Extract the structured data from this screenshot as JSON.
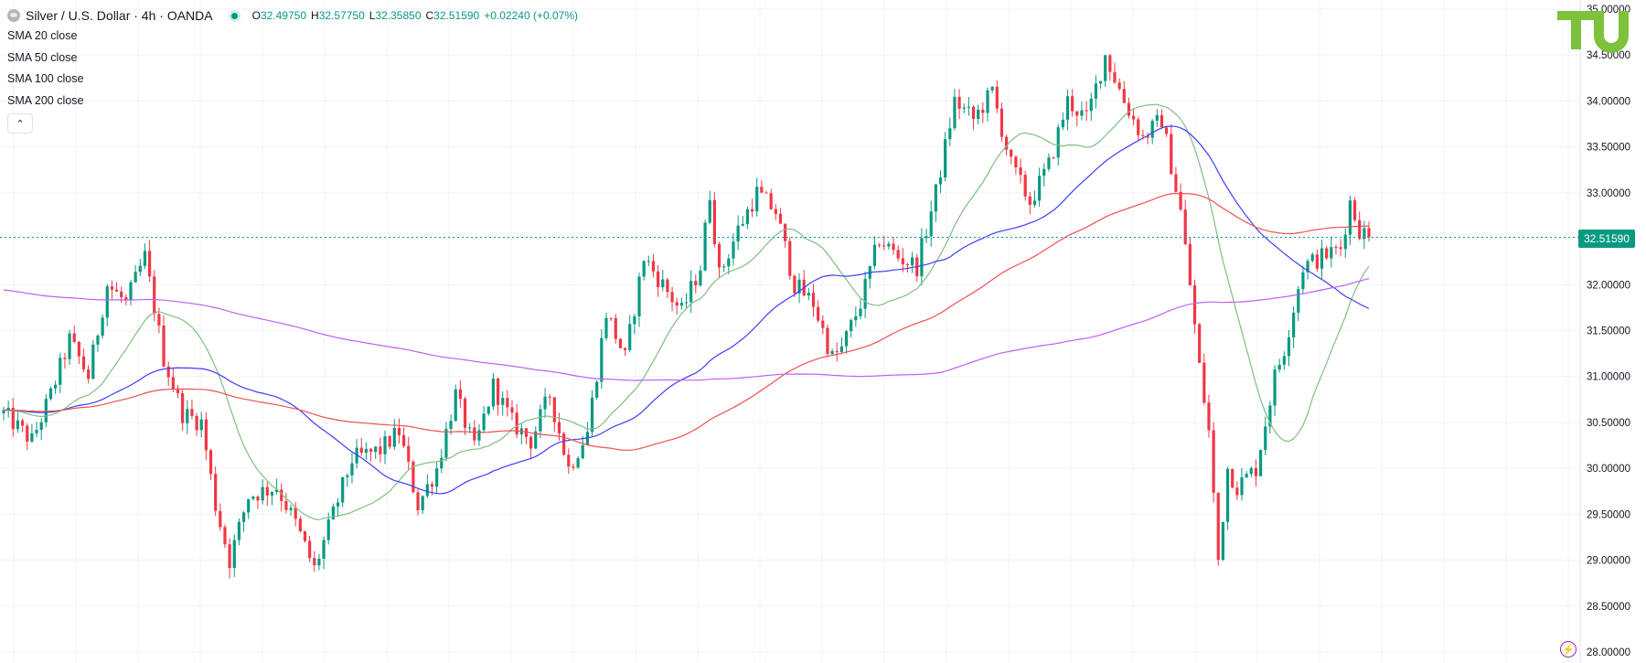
{
  "header": {
    "title": "Silver / U.S. Dollar · 4h · OANDA",
    "open_label": "O",
    "open": "32.49750",
    "high_label": "H",
    "high": "32.57750",
    "low_label": "L",
    "low": "32.35850",
    "close_label": "C",
    "close": "32.51590",
    "change": "+0.02240 (+0.07%)"
  },
  "indicators": [
    {
      "name": "SMA",
      "params": "20 close"
    },
    {
      "name": "SMA",
      "params": "50 close"
    },
    {
      "name": "SMA",
      "params": "100 close"
    },
    {
      "name": "SMA",
      "params": "200 close"
    }
  ],
  "last_price_label": "32.51590",
  "colors": {
    "up": "#089981",
    "down": "#f23645",
    "sma20": "#7fbf7f",
    "sma50": "#3d3dff",
    "sma100": "#f05050",
    "sma200": "#c060f0",
    "grid": "#f0f3fa",
    "axis_text": "#131722",
    "logo": "#7ec13d"
  },
  "chart_data": {
    "type": "candlestick",
    "symbol": "XAGUSD",
    "timeframe": "4h",
    "source": "OANDA",
    "ylim": [
      28.0,
      35.0
    ],
    "y_ticks": [
      "35.00000",
      "34.50000",
      "34.00000",
      "33.50000",
      "33.00000",
      "32.50000",
      "32.00000",
      "31.50000",
      "31.00000",
      "30.50000",
      "30.00000",
      "29.50000",
      "29.00000",
      "28.50000",
      "28.00000"
    ],
    "price_path": [
      [
        0,
        30.6
      ],
      [
        6,
        30.3
      ],
      [
        10,
        30.8
      ],
      [
        14,
        31.4
      ],
      [
        18,
        31.0
      ],
      [
        22,
        32.0
      ],
      [
        26,
        31.8
      ],
      [
        30,
        32.3
      ],
      [
        34,
        31.2
      ],
      [
        38,
        30.6
      ],
      [
        42,
        30.5
      ],
      [
        45,
        29.6
      ],
      [
        48,
        29.0
      ],
      [
        52,
        29.7
      ],
      [
        58,
        29.8
      ],
      [
        62,
        29.4
      ],
      [
        66,
        28.9
      ],
      [
        70,
        29.5
      ],
      [
        74,
        30.1
      ],
      [
        80,
        30.2
      ],
      [
        84,
        30.4
      ],
      [
        88,
        29.6
      ],
      [
        92,
        30.0
      ],
      [
        96,
        30.8
      ],
      [
        100,
        30.2
      ],
      [
        104,
        30.9
      ],
      [
        108,
        30.5
      ],
      [
        112,
        30.3
      ],
      [
        116,
        30.8
      ],
      [
        120,
        30.0
      ],
      [
        124,
        30.4
      ],
      [
        128,
        31.7
      ],
      [
        132,
        31.2
      ],
      [
        136,
        32.3
      ],
      [
        140,
        32.0
      ],
      [
        144,
        31.7
      ],
      [
        148,
        32.2
      ],
      [
        150,
        33.0
      ],
      [
        152,
        32.1
      ],
      [
        156,
        32.6
      ],
      [
        160,
        33.0
      ],
      [
        164,
        32.8
      ],
      [
        168,
        32.0
      ],
      [
        172,
        31.8
      ],
      [
        176,
        31.2
      ],
      [
        178,
        31.3
      ],
      [
        182,
        31.8
      ],
      [
        186,
        32.5
      ],
      [
        190,
        32.3
      ],
      [
        194,
        32.2
      ],
      [
        198,
        33.0
      ],
      [
        202,
        34.0
      ],
      [
        206,
        33.8
      ],
      [
        210,
        34.1
      ],
      [
        214,
        33.3
      ],
      [
        218,
        32.9
      ],
      [
        222,
        33.3
      ],
      [
        226,
        34.0
      ],
      [
        230,
        33.8
      ],
      [
        234,
        34.5
      ],
      [
        238,
        34.0
      ],
      [
        242,
        33.6
      ],
      [
        246,
        33.8
      ],
      [
        250,
        32.8
      ],
      [
        252,
        32.0
      ],
      [
        254,
        31.1
      ],
      [
        256,
        30.4
      ],
      [
        258,
        29.0
      ],
      [
        260,
        30.0
      ],
      [
        262,
        29.8
      ],
      [
        266,
        30.0
      ],
      [
        270,
        31.0
      ],
      [
        272,
        31.3
      ],
      [
        276,
        32.2
      ],
      [
        280,
        32.3
      ],
      [
        284,
        32.4
      ],
      [
        286,
        32.9
      ],
      [
        288,
        32.6
      ],
      [
        290,
        32.5159
      ]
    ],
    "candle_count": 291,
    "series": [
      {
        "name": "SMA 20 close",
        "color": "#7fbf7f"
      },
      {
        "name": "SMA 50 close",
        "color": "#3d3dff"
      },
      {
        "name": "SMA 100 close",
        "color": "#f05050"
      },
      {
        "name": "SMA 200 close",
        "color": "#c060f0",
        "initial": 31.95
      }
    ],
    "last_price": 32.5159
  }
}
